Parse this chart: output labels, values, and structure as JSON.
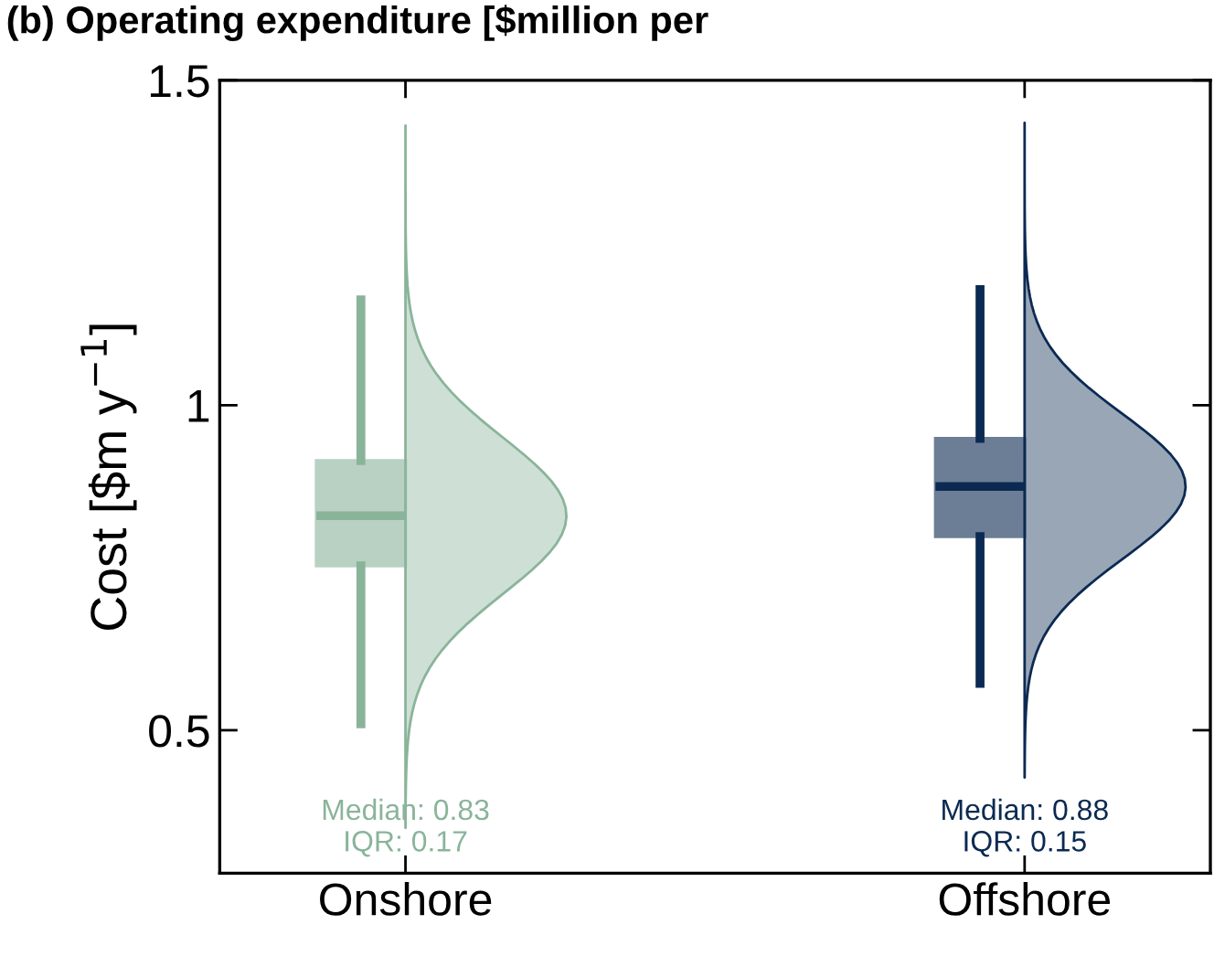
{
  "chart_data": {
    "type": "box",
    "title": "(b) Operating expenditure [$million per",
    "ylabel": "Cost [$m y$^{−1}$]",
    "categories": [
      "Onshore",
      "Offshore"
    ],
    "colors": [
      "#8ab49a",
      "#0b2a52"
    ],
    "boxes": [
      {
        "low": 0.51,
        "q1": 0.753,
        "median": 0.83,
        "q3": 0.915,
        "high": 1.162
      },
      {
        "low": 0.572,
        "q1": 0.798,
        "median": 0.875,
        "q3": 0.949,
        "high": 1.178
      }
    ],
    "annotations": [
      "Median: 0.83\nIQR: 0.17",
      "Median: 0.88\nIQR: 0.15"
    ],
    "ylim": [
      0.28,
      1.5
    ],
    "yticks": [
      0.5,
      1,
      1.5
    ],
    "grid": false
  }
}
